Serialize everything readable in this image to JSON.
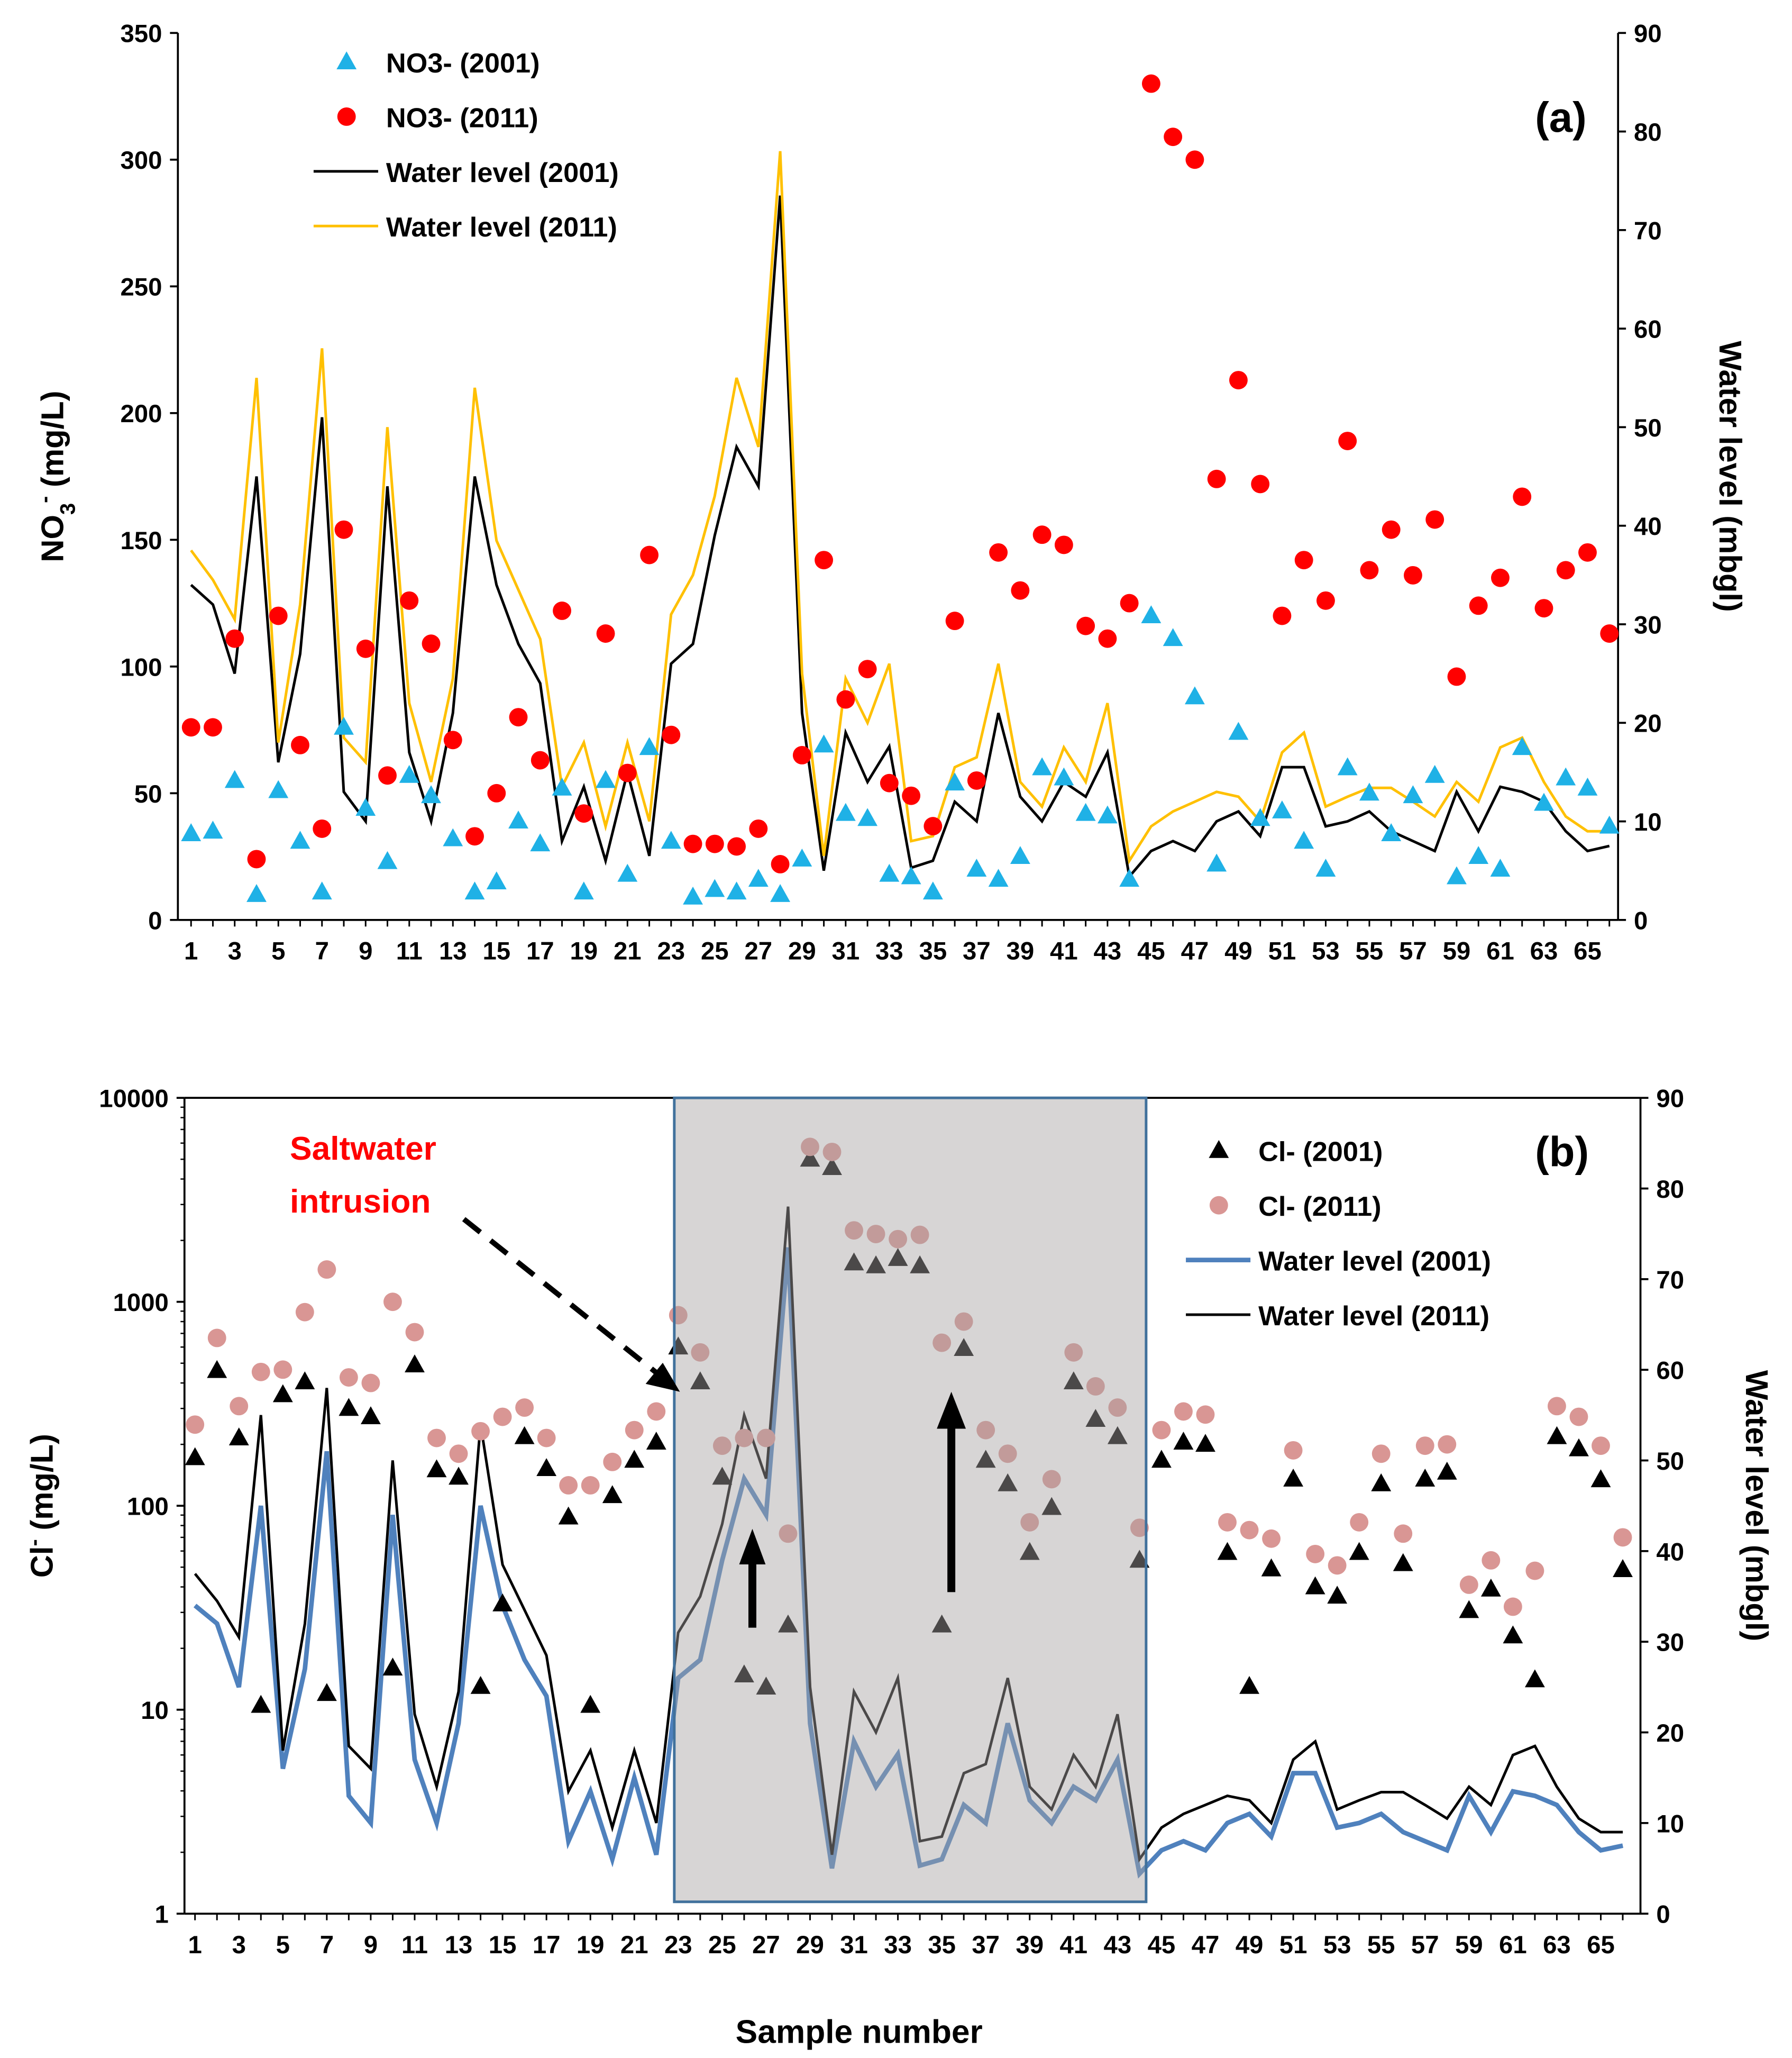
{
  "chart_data": [
    {
      "panel": "(a)",
      "type": "scatter+line",
      "xlabel": "",
      "x_ticks": [
        "1",
        "3",
        "5",
        "7",
        "9",
        "11",
        "13",
        "15",
        "17",
        "19",
        "21",
        "23",
        "25",
        "27",
        "29",
        "31",
        "33",
        "35",
        "37",
        "39",
        "41",
        "43",
        "45",
        "47",
        "49",
        "51",
        "53",
        "55",
        "57",
        "59",
        "61",
        "63",
        "65"
      ],
      "ylabel": {
        "base": "NO",
        "sub": "3",
        "sup": "-",
        "unit": " (mg/L)"
      },
      "ylim": [
        0,
        350
      ],
      "y_ticks": [
        "0",
        "50",
        "100",
        "150",
        "200",
        "250",
        "300",
        "350"
      ],
      "y2label": "Water level (mbgl)",
      "y2lim": [
        0,
        90
      ],
      "y2_ticks": [
        "0",
        "10",
        "20",
        "30",
        "40",
        "50",
        "60",
        "70",
        "80",
        "90"
      ],
      "legend_position": "top-left",
      "series": [
        {
          "name": "NO3- (2001)",
          "kind": "triangle",
          "axis": "left",
          "color": "#1FB1E6",
          "values": [
            34,
            35,
            55,
            10,
            51,
            31,
            11,
            76,
            44,
            23,
            57,
            49,
            32,
            11,
            15,
            39,
            30,
            52,
            11,
            55,
            18,
            68,
            31,
            9,
            12,
            11,
            16,
            10,
            24,
            69,
            42,
            40,
            18,
            17,
            11,
            54,
            20,
            16,
            25,
            60,
            56,
            42,
            41,
            16,
            120,
            111,
            88,
            22,
            74,
            40,
            43,
            31,
            20,
            60,
            50,
            34,
            49,
            57,
            17,
            25,
            20,
            68,
            46,
            56,
            52,
            37
          ]
        },
        {
          "name": "NO3- (2011)",
          "kind": "circle",
          "axis": "left",
          "color": "#FF0000",
          "values": [
            76,
            76,
            111,
            24,
            120,
            69,
            36,
            154,
            107,
            57,
            126,
            109,
            71,
            33,
            50,
            80,
            63,
            122,
            42,
            113,
            58,
            144,
            73,
            30,
            30,
            29,
            36,
            22,
            65,
            142,
            87,
            99,
            54,
            49,
            37,
            118,
            55,
            145,
            130,
            152,
            148,
            116,
            111,
            125,
            330,
            309,
            300,
            174,
            213,
            172,
            120,
            142,
            126,
            189,
            138,
            154,
            136,
            158,
            96,
            124,
            135,
            167,
            123,
            138,
            145,
            113
          ]
        },
        {
          "name": "Water level (2001)",
          "kind": "line",
          "axis": "right",
          "color": "#000000",
          "values": [
            34,
            32,
            25,
            45,
            16,
            27,
            51,
            13,
            10,
            44,
            17,
            10,
            21,
            45,
            34,
            28,
            24,
            8,
            13.5,
            6,
            15,
            6.5,
            26,
            28,
            39,
            48,
            44,
            73.5,
            21,
            5,
            19,
            14,
            17.6,
            5.3,
            6,
            12,
            10,
            21,
            12.5,
            10,
            14,
            12.5,
            17,
            4.4,
            7,
            8,
            7,
            10,
            11,
            8.5,
            15.5,
            15.5,
            9.5,
            10,
            11,
            9,
            8,
            7,
            13,
            9,
            13.5,
            13,
            12,
            9,
            7,
            7.5
          ]
        },
        {
          "name": "Water level (2011)",
          "kind": "line",
          "axis": "right",
          "color": "#FFC000",
          "values": [
            37.5,
            34.5,
            30.5,
            55,
            18,
            32,
            58,
            18.5,
            16,
            50,
            22,
            14,
            24.5,
            54,
            38.5,
            33.5,
            28.5,
            13.5,
            18,
            9.5,
            18,
            10,
            31,
            35,
            43,
            55,
            48,
            78,
            25,
            6.5,
            24.5,
            20,
            26,
            8,
            8.5,
            15.5,
            16.5,
            26,
            14,
            11.5,
            17.5,
            14,
            22,
            6,
            9.5,
            11,
            12,
            13,
            12.5,
            10,
            17,
            19,
            11.5,
            12.5,
            13.4,
            13.4,
            12,
            10.5,
            14,
            12,
            17.5,
            18.5,
            14,
            10.5,
            9,
            9
          ]
        }
      ]
    },
    {
      "panel": "(b)",
      "type": "scatter+line",
      "xlabel": "Sample number",
      "x_ticks": [
        "1",
        "3",
        "5",
        "7",
        "9",
        "11",
        "13",
        "15",
        "17",
        "19",
        "21",
        "23",
        "25",
        "27",
        "29",
        "31",
        "33",
        "35",
        "37",
        "39",
        "41",
        "43",
        "45",
        "47",
        "49",
        "51",
        "53",
        "55",
        "57",
        "59",
        "61",
        "63",
        "65"
      ],
      "ylabel": {
        "base": "Cl",
        "sup": "-",
        "unit": " (mg/L)"
      },
      "yscale": "log",
      "ylim": [
        1,
        10000
      ],
      "y_ticks": [
        "1",
        "10",
        "100",
        "1000",
        "10000"
      ],
      "y2label": "Water level (mbgl)",
      "y2lim": [
        0,
        90
      ],
      "y2_ticks": [
        "0",
        "10",
        "20",
        "30",
        "40",
        "50",
        "60",
        "70",
        "80",
        "90"
      ],
      "legend_position": "top-right",
      "annotations": {
        "text_line1": "Saltwater",
        "text_line2": "intrusion",
        "highlight_samples": [
          23,
          44
        ]
      },
      "series": [
        {
          "name": "Cl- (2001)",
          "kind": "triangle",
          "axis": "left",
          "color": "#000000",
          "values": [
            172,
            460,
            215,
            10.5,
            350,
            405,
            12,
            300,
            273,
            16,
            490,
            150,
            138,
            13,
            33,
            218,
            152,
            88,
            10.5,
            112,
            167,
            205,
            600,
            405,
            138,
            14.8,
            12.9,
            26,
            5000,
            4550,
            1550,
            1500,
            1630,
            1500,
            26,
            590,
            167,
            128,
            59,
            98,
            405,
            265,
            218,
            54,
            167,
            205,
            200,
            59,
            13,
            49,
            135,
            40,
            36,
            59,
            128,
            52,
            135,
            146,
            30.6,
            39,
            23,
            14,
            218,
            190,
            134,
            48.6
          ]
        },
        {
          "name": "Cl- (2011)",
          "kind": "circle",
          "axis": "left",
          "color": "#D99694",
          "values": [
            250,
            665,
            308,
            453,
            465,
            890,
            1440,
            426,
            400,
            1000,
            710,
            215,
            180,
            232,
            273,
            303,
            215,
            126,
            126,
            164,
            235,
            290,
            860,
            565,
            197,
            215,
            215,
            73,
            5750,
            5430,
            2240,
            2150,
            2030,
            2130,
            630,
            800,
            235,
            180,
            83,
            135,
            565,
            385,
            303,
            78,
            235,
            290,
            280,
            83,
            76,
            69,
            187,
            58,
            51,
            83,
            180,
            73,
            197,
            200,
            41,
            54,
            32,
            48,
            308,
            273,
            197,
            70
          ]
        },
        {
          "name": "Water level (2001)",
          "kind": "line",
          "axis": "right",
          "color": "#4F81BD",
          "values": [
            34,
            32,
            25,
            45,
            16,
            27,
            51,
            13,
            10,
            44,
            17,
            10,
            21,
            45,
            34,
            28,
            24,
            8,
            13.5,
            6,
            15,
            6.5,
            26,
            28,
            39,
            48,
            44,
            73.5,
            21,
            5,
            19,
            14,
            17.6,
            5.3,
            6,
            12,
            10,
            21,
            12.5,
            10,
            14,
            12.5,
            17,
            4.4,
            7,
            8,
            7,
            10,
            11,
            8.5,
            15.5,
            15.5,
            9.5,
            10,
            11,
            9,
            8,
            7,
            13,
            9,
            13.5,
            13,
            12,
            9,
            7,
            7.5
          ]
        },
        {
          "name": "Water level (2011)",
          "kind": "line",
          "axis": "right",
          "color": "#000000",
          "values": [
            37.5,
            34.5,
            30.5,
            55,
            18,
            32,
            58,
            18.5,
            16,
            50,
            22,
            14,
            24.5,
            54,
            38.5,
            33.5,
            28.5,
            13.5,
            18,
            9.5,
            18,
            10,
            31,
            35,
            43,
            55,
            48,
            78,
            25,
            6.5,
            24.5,
            20,
            26,
            8,
            8.5,
            15.5,
            16.5,
            26,
            14,
            11.5,
            17.5,
            14,
            22,
            6,
            9.5,
            11,
            12,
            13,
            12.5,
            10,
            17,
            19,
            11.5,
            12.5,
            13.4,
            13.4,
            12,
            10.5,
            14,
            12,
            17.5,
            18.5,
            14,
            10.5,
            9,
            9
          ]
        }
      ]
    }
  ]
}
